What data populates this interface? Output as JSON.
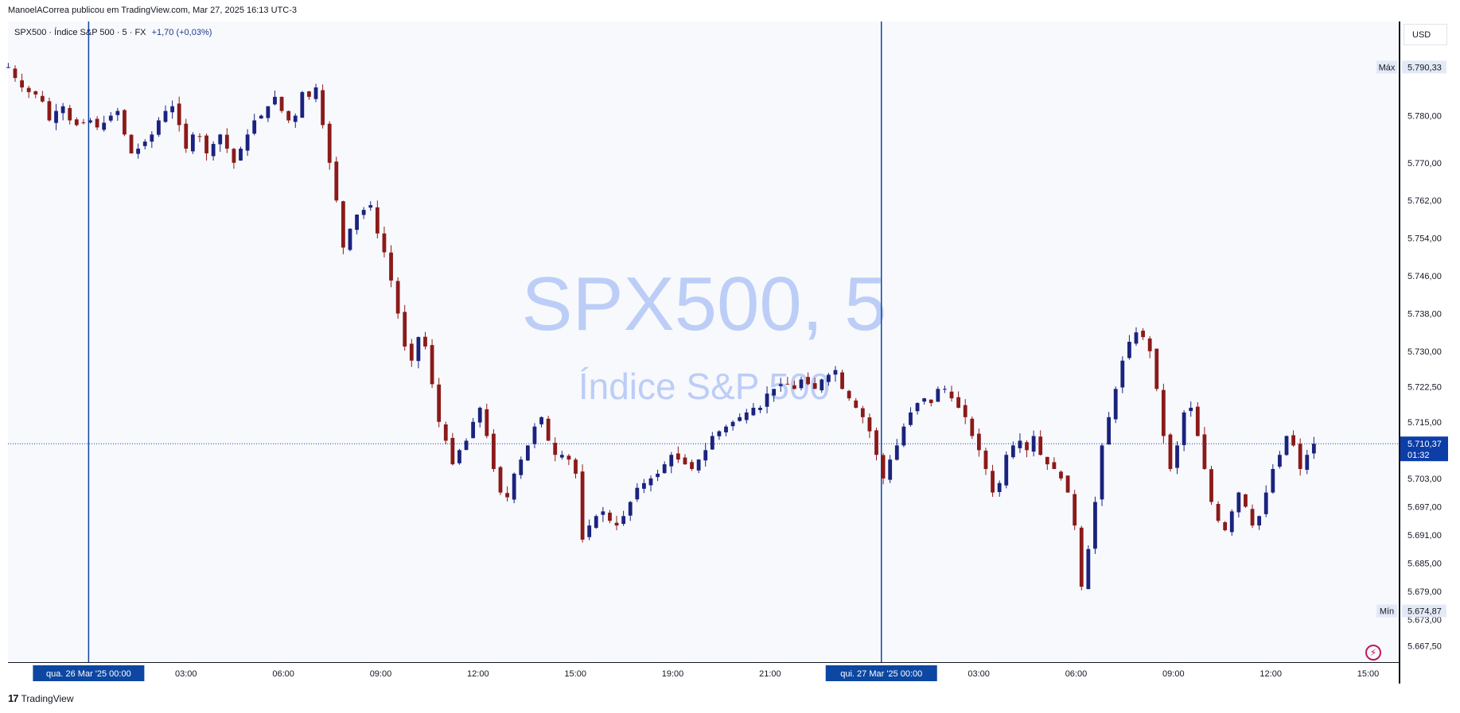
{
  "header": {
    "publisher_line": "ManoelACorrea publicou em TradingView.com, Mar 27, 2025 16:13 UTC-3"
  },
  "legend": {
    "symbol_line": "SPX500 · Índice S&P 500 · 5 · FX",
    "change": "+1,70 (+0,03%)"
  },
  "watermark": {
    "title": "SPX500, 5",
    "subtitle": "Índice S&P 500"
  },
  "currency_button": "USD",
  "footer": {
    "brand": "TradingView",
    "logo_glyph": "17"
  },
  "colors": {
    "up": "#1a237e",
    "down": "#8b1a1a",
    "session_line": "#0d47a1",
    "price_label_bg": "#0d3ea8",
    "watermark": "#bccdf7"
  },
  "chart_data": {
    "type": "candlestick",
    "symbol": "SPX500",
    "interval": "5",
    "yticks": [
      "5.790,33",
      "5.780,00",
      "5.770,00",
      "5.762,00",
      "5.754,00",
      "5.746,00",
      "5.738,00",
      "5.730,00",
      "5.722,50",
      "5.715,00",
      "5.703,00",
      "5.697,00",
      "5.691,00",
      "5.685,00",
      "5.679,00",
      "5.673,00",
      "5.667,50"
    ],
    "ytick_values": [
      5790.33,
      5780,
      5770,
      5762,
      5754,
      5746,
      5738,
      5730,
      5722.5,
      5715,
      5703,
      5697,
      5691,
      5685,
      5679,
      5673,
      5667.5
    ],
    "xticks": [
      "qua. 26 Mar '25   00:00",
      "03:00",
      "06:00",
      "09:00",
      "12:00",
      "15:00",
      "19:00",
      "21:00",
      "qui. 27 Mar '25   00:00",
      "03:00",
      "06:00",
      "09:00",
      "12:00",
      "15:00"
    ],
    "ylim": [
      5664,
      5800
    ],
    "max_label": "Máx",
    "max_value": "5.790,33",
    "min_label": "Mín",
    "min_value": "5.674,87",
    "last_price": "5.710,37",
    "last_price_value": 5710.37,
    "countdown": "01:32",
    "session_marks": [
      "qua. 26 Mar '25   00:00",
      "qui. 27 Mar '25   00:00"
    ],
    "close_path": [
      5790.3,
      5788.0,
      5786.0,
      5785.0,
      5784.5,
      5783.0,
      5779.0,
      5781.0,
      5782.0,
      5779.0,
      5778.0,
      5778.5,
      5779.0,
      5777.5,
      5778.5,
      5780.0,
      5781.0,
      5776.0,
      5772.0,
      5773.0,
      5774.5,
      5776.0,
      5779.0,
      5781.0,
      5782.0,
      5778.0,
      5773.0,
      5776.0,
      5775.5,
      5772.0,
      5774.0,
      5776.0,
      5773.0,
      5770.0,
      5773.0,
      5776.0,
      5779.0,
      5780.0,
      5782.0,
      5784.0,
      5781.0,
      5779.0,
      5780.0,
      5785.0,
      5784.0,
      5786.0,
      5778.0,
      5770.0,
      5762.0,
      5752.0,
      5756.0,
      5759.0,
      5760.0,
      5761.0,
      5755.0,
      5751.0,
      5745.0,
      5738.0,
      5731.0,
      5728.0,
      5733.0,
      5731.0,
      5723.0,
      5715.0,
      5711.0,
      5706.0,
      5709.0,
      5711.0,
      5715.0,
      5718.0,
      5712.0,
      5705.0,
      5700.0,
      5699.0,
      5704.0,
      5707.0,
      5710.0,
      5714.0,
      5716.0,
      5711.0,
      5708.0,
      5708.0,
      5707.0,
      5704.0,
      5690.0,
      5693.0,
      5695.0,
      5696.0,
      5694.0,
      5693.0,
      5695.0,
      5698.0,
      5701.0,
      5702.0,
      5703.0,
      5704.0,
      5706.0,
      5708.0,
      5707.0,
      5706.0,
      5705.0,
      5707.0,
      5709.0,
      5712.0,
      5713.0,
      5714.0,
      5715.0,
      5716.0,
      5717.0,
      5718.0,
      5718.0,
      5721.0,
      5722.0,
      5723.0,
      5723.0,
      5722.0,
      5724.0,
      5723.0,
      5722.0,
      5724.0,
      5725.0,
      5726.0,
      5722.0,
      5720.0,
      5718.0,
      5716.0,
      5713.0,
      5708.0,
      5703.0,
      5707.0,
      5710.0,
      5714.0,
      5717.0,
      5719.0,
      5720.0,
      5719.0,
      5722.0,
      5722.0,
      5720.0,
      5718.0,
      5716.0,
      5712.0,
      5709.0,
      5705.0,
      5700.0,
      5702.0,
      5708.0,
      5710.0,
      5711.0,
      5709.0,
      5712.0,
      5708.0,
      5706.0,
      5705.0,
      5703.0,
      5700.0,
      5693.0,
      5680.0,
      5688.0,
      5698.0,
      5710.0,
      5716.0,
      5722.0,
      5728.0,
      5732.0,
      5734.0,
      5733.0,
      5730.0,
      5722.0,
      5712.0,
      5705.0,
      5710.0,
      5717.0,
      5718.0,
      5712.0,
      5705.0,
      5698.0,
      5694.0,
      5692.0,
      5696.0,
      5700.0,
      5697.0,
      5693.0,
      5695.0,
      5700.0,
      5705.0,
      5708.0,
      5712.0,
      5710.0,
      5705.0,
      5708.0,
      5710.37
    ],
    "x_ticks_norm": [
      0.058,
      0.128,
      0.198,
      0.268,
      0.338,
      0.408,
      0.478,
      0.548,
      0.628,
      0.698,
      0.768,
      0.838,
      0.908,
      0.978
    ]
  }
}
